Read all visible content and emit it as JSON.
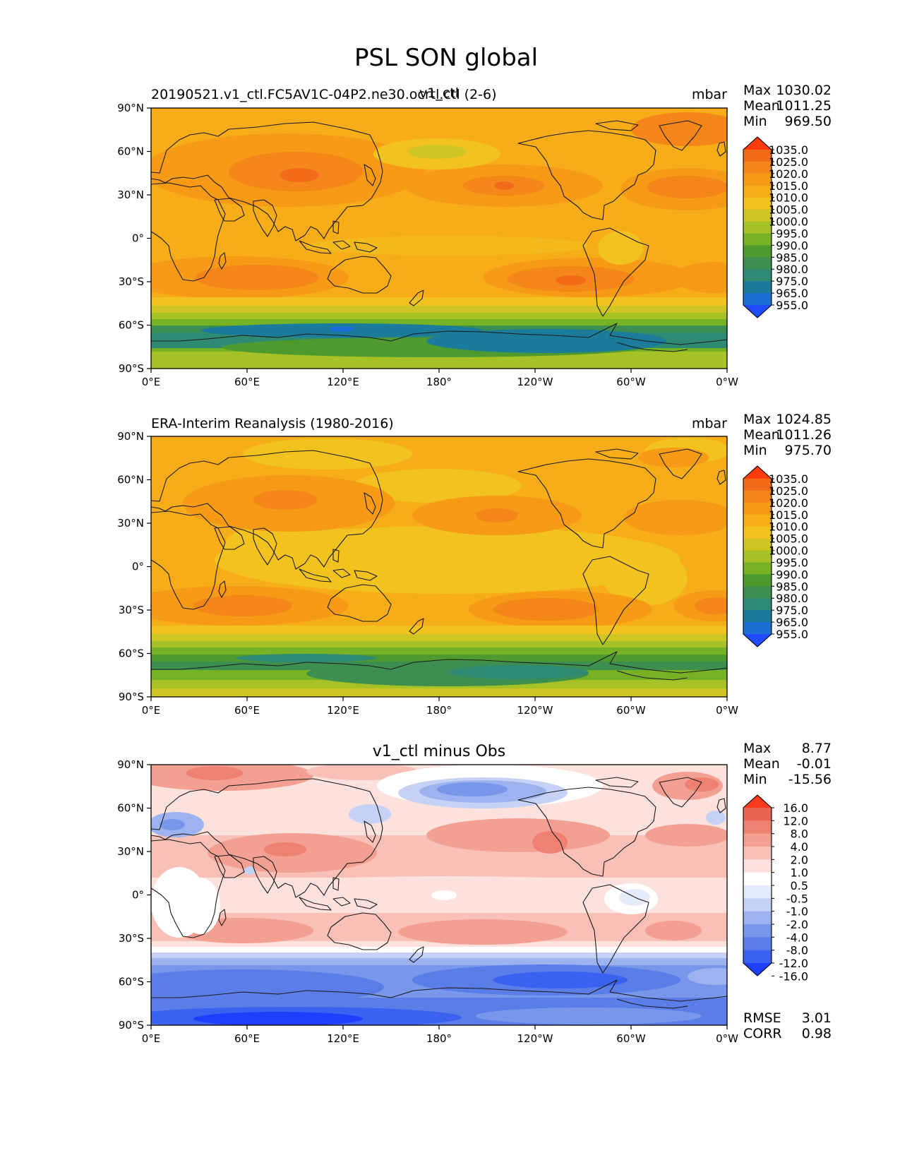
{
  "figure_title": "PSL SON global",
  "colors": {
    "psl": [
      "#1f4cff",
      "#1d6fd6",
      "#1b7b9a",
      "#2f8a73",
      "#3d8f4f",
      "#4e9a2e",
      "#77b224",
      "#a7c226",
      "#cfc525",
      "#f2c21f",
      "#f7ad18",
      "#f79a16",
      "#f5861a",
      "#f36a18",
      "#ff3b0a"
    ],
    "diff": [
      "#1f3fff",
      "#3a62f0",
      "#5a7de8",
      "#7896ea",
      "#9db3f0",
      "#c5d1f5",
      "#e6ebfb",
      "#ffffff",
      "#fde1dd",
      "#f9c0b7",
      "#f3a093",
      "#ee8171",
      "#ea6452",
      "#ff3b1f"
    ]
  },
  "axes": {
    "x_ticks": [
      "0°E",
      "60°E",
      "120°E",
      "180°",
      "120°W",
      "60°W",
      "0°W"
    ],
    "y_ticks": [
      "90°N",
      "60°N",
      "30°N",
      "0°",
      "30°S",
      "60°S",
      "90°S"
    ]
  },
  "panels": [
    {
      "left_title": "20190521.v1_ctl.FC5AV1C-04P2.ne30.ocrtl.ctl (2-6)",
      "center_title": "v1_ctl",
      "units": "mbar",
      "stats": [
        {
          "label": "Max",
          "value": "1030.02"
        },
        {
          "label": "Mean",
          "value": "1011.25"
        },
        {
          "label": "Min",
          "value": "969.50"
        }
      ],
      "colorbar_labels": [
        "1035.0",
        "1025.0",
        "1020.0",
        "1015.0",
        "1010.0",
        "1005.0",
        "1000.0",
        "995.0",
        "990.0",
        "985.0",
        "980.0",
        "975.0",
        "965.0",
        "955.0"
      ]
    },
    {
      "left_title": "ERA-Interim Reanalysis (1980-2016)",
      "center_title": "",
      "units": "mbar",
      "stats": [
        {
          "label": "Max",
          "value": "1024.85"
        },
        {
          "label": "Mean",
          "value": "1011.26"
        },
        {
          "label": "Min",
          "value": "975.70"
        }
      ],
      "colorbar_labels": [
        "1035.0",
        "1025.0",
        "1020.0",
        "1015.0",
        "1010.0",
        "1005.0",
        "1000.0",
        "995.0",
        "990.0",
        "985.0",
        "980.0",
        "975.0",
        "965.0",
        "955.0"
      ]
    },
    {
      "left_title": "",
      "center_title": "v1_ctl minus Obs",
      "units": "",
      "stats": [
        {
          "label": "Max",
          "value": "8.77"
        },
        {
          "label": "Mean",
          "value": "-0.01"
        },
        {
          "label": "Min",
          "value": "-15.56"
        }
      ],
      "colorbar_labels": [
        "16.0",
        "12.0",
        "8.0",
        "4.0",
        "2.0",
        "1.0",
        "0.5",
        "-0.5",
        "-1.0",
        "-2.0",
        "-4.0",
        "-8.0",
        "-12.0",
        "-16.0"
      ],
      "metrics": [
        {
          "label": "RMSE",
          "value": "3.01"
        },
        {
          "label": "CORR",
          "value": "0.98"
        }
      ]
    }
  ]
}
